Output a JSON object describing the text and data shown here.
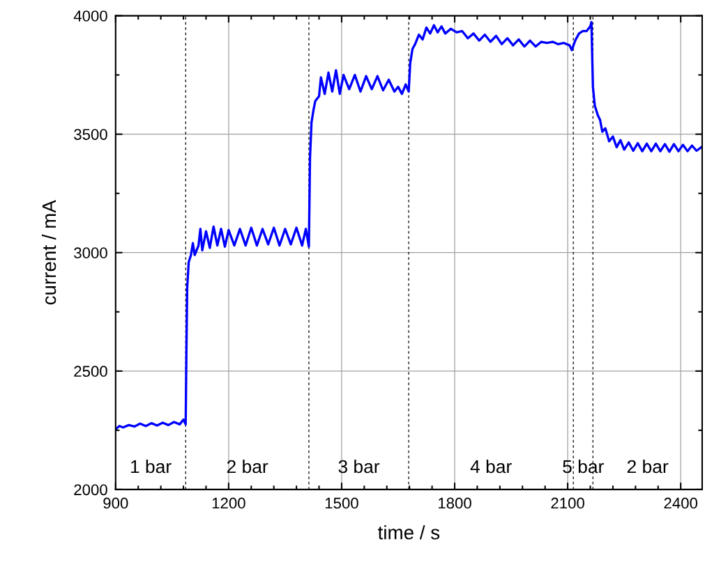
{
  "chart_data": {
    "type": "line",
    "xlabel": "time / s",
    "ylabel": "current / mA",
    "xlim": [
      900,
      2457
    ],
    "xticks": [
      900,
      1200,
      1500,
      1800,
      2100,
      2400
    ],
    "ylim": [
      2000,
      4000
    ],
    "yticks": [
      2000,
      2500,
      3000,
      3500,
      4000
    ],
    "grid": true,
    "legend": false,
    "marker": "none",
    "line_style": "solid",
    "series": [
      {
        "color": "#0000ff",
        "x": [
          900,
          910,
          920,
          935,
          950,
          965,
          980,
          995,
          1010,
          1025,
          1040,
          1055,
          1070,
          1080,
          1086,
          1088,
          1090,
          1094,
          1100,
          1105,
          1110,
          1120,
          1125,
          1130,
          1140,
          1150,
          1160,
          1170,
          1180,
          1190,
          1200,
          1215,
          1230,
          1245,
          1260,
          1275,
          1290,
          1305,
          1320,
          1335,
          1350,
          1365,
          1380,
          1395,
          1405,
          1413,
          1416,
          1420,
          1425,
          1430,
          1440,
          1445,
          1455,
          1465,
          1475,
          1485,
          1495,
          1505,
          1520,
          1535,
          1550,
          1565,
          1580,
          1595,
          1610,
          1625,
          1640,
          1650,
          1660,
          1670,
          1678,
          1682,
          1688,
          1695,
          1705,
          1715,
          1725,
          1735,
          1745,
          1755,
          1765,
          1775,
          1790,
          1805,
          1820,
          1835,
          1850,
          1865,
          1880,
          1895,
          1910,
          1925,
          1940,
          1955,
          1970,
          1985,
          2000,
          2015,
          2030,
          2045,
          2060,
          2075,
          2090,
          2105,
          2111,
          2120,
          2130,
          2140,
          2150,
          2160,
          2163,
          2167,
          2172,
          2180,
          2186,
          2192,
          2200,
          2210,
          2220,
          2230,
          2240,
          2250,
          2262,
          2274,
          2286,
          2298,
          2310,
          2322,
          2334,
          2346,
          2358,
          2370,
          2382,
          2394,
          2406,
          2418,
          2430,
          2442,
          2455
        ],
        "values": [
          2255,
          2268,
          2262,
          2272,
          2266,
          2278,
          2268,
          2280,
          2270,
          2282,
          2272,
          2285,
          2275,
          2295,
          2275,
          2600,
          2850,
          2960,
          2990,
          3040,
          2990,
          3030,
          3100,
          3010,
          3090,
          3020,
          3110,
          3030,
          3100,
          3025,
          3095,
          3030,
          3100,
          3030,
          3105,
          3030,
          3100,
          3035,
          3105,
          3030,
          3100,
          3035,
          3105,
          3030,
          3100,
          3025,
          3400,
          3550,
          3600,
          3640,
          3660,
          3740,
          3670,
          3760,
          3680,
          3770,
          3670,
          3750,
          3690,
          3750,
          3680,
          3745,
          3690,
          3745,
          3685,
          3730,
          3680,
          3700,
          3670,
          3710,
          3680,
          3800,
          3860,
          3880,
          3920,
          3900,
          3950,
          3925,
          3960,
          3930,
          3955,
          3925,
          3945,
          3930,
          3935,
          3905,
          3925,
          3895,
          3920,
          3890,
          3915,
          3880,
          3905,
          3875,
          3900,
          3870,
          3895,
          3870,
          3890,
          3885,
          3890,
          3880,
          3885,
          3875,
          3855,
          3895,
          3925,
          3935,
          3935,
          3955,
          3973,
          3700,
          3620,
          3580,
          3560,
          3510,
          3525,
          3470,
          3490,
          3445,
          3475,
          3435,
          3465,
          3430,
          3462,
          3428,
          3460,
          3428,
          3460,
          3428,
          3458,
          3426,
          3458,
          3428,
          3455,
          3428,
          3452,
          3430,
          3445
        ]
      }
    ],
    "ref_lines": [
      {
        "axis": "x",
        "value": 1086,
        "color": "#000000",
        "line_style": "dashed"
      },
      {
        "axis": "x",
        "value": 1413,
        "color": "#000000",
        "line_style": "dashed"
      },
      {
        "axis": "x",
        "value": 1678,
        "color": "#000000",
        "line_style": "dashed"
      },
      {
        "axis": "x",
        "value": 2115,
        "color": "#000000",
        "line_style": "dashed"
      },
      {
        "axis": "x",
        "value": 2167,
        "color": "#000000",
        "line_style": "dashed"
      }
    ],
    "annotations": [
      "1 bar",
      "2 bar",
      "3 bar",
      "4 bar",
      "5 bar",
      "2 bar"
    ]
  }
}
